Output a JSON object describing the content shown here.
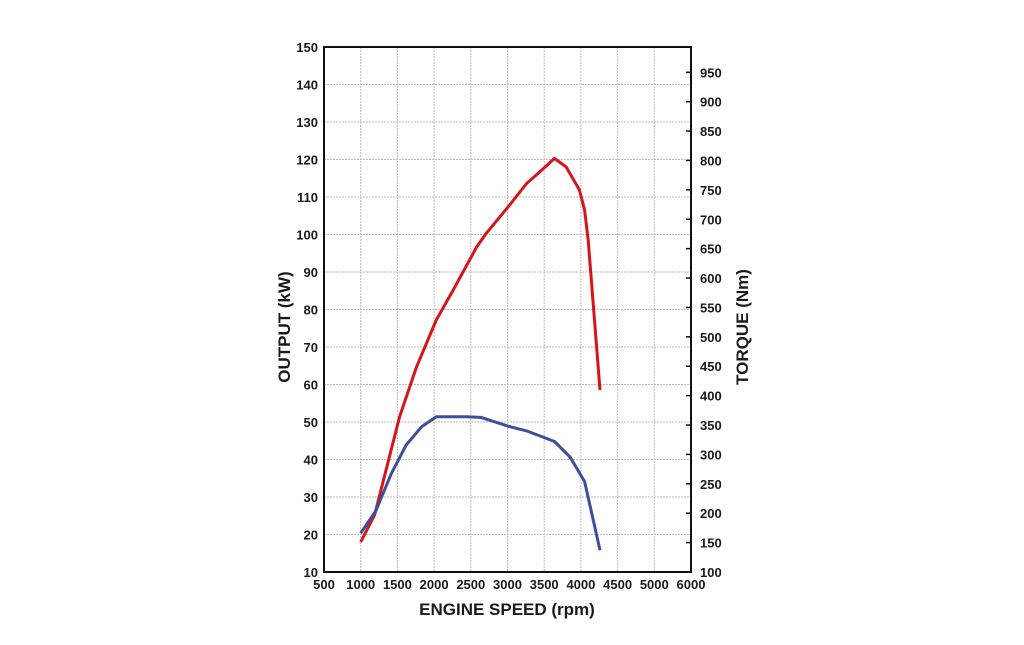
{
  "chart_data": {
    "type": "line",
    "title": "",
    "xlabel": "ENGINE SPEED  (rpm)",
    "ylabel": "OUTPUT  (kW)",
    "y2label": "TORQUE  (Nm)",
    "x_tick_labels": [
      "500",
      "1000",
      "1500",
      "2000",
      "2500",
      "3000",
      "3500",
      "4000",
      "4500",
      "5000",
      "6000"
    ],
    "xlim": [
      500,
      5500
    ],
    "ylim": [
      10,
      150
    ],
    "y_ticks": [
      10,
      20,
      30,
      40,
      50,
      60,
      70,
      80,
      90,
      100,
      110,
      120,
      130,
      140,
      150
    ],
    "y2lim": [
      100,
      993
    ],
    "y2_ticks": [
      100,
      150,
      200,
      250,
      300,
      350,
      400,
      450,
      500,
      550,
      600,
      650,
      700,
      750,
      800,
      850,
      900,
      950
    ],
    "grid": true,
    "series": [
      {
        "name": "Output (kW)",
        "axis": "left",
        "color": "#d7141a",
        "x": [
          1000,
          1190,
          1530,
          1760,
          2030,
          2260,
          2580,
          2710,
          3030,
          3260,
          3440,
          3640,
          3800,
          3980,
          4050,
          4100,
          4260
        ],
        "y": [
          18,
          25.2,
          51.4,
          64.7,
          77.2,
          85.2,
          96.7,
          100.3,
          107.9,
          113.6,
          116.7,
          120.3,
          118,
          111.9,
          106.5,
          98.5,
          58.5
        ]
      },
      {
        "name": "Torque (Nm)",
        "axis": "right",
        "color": "#3d4f9a",
        "x": [
          1000,
          1210,
          1420,
          1620,
          1830,
          2030,
          2440,
          2640,
          3010,
          3260,
          3640,
          3850,
          4050,
          4260
        ],
        "y": [
          166,
          205,
          268,
          316,
          347,
          364,
          364,
          363,
          348,
          340,
          322,
          296,
          254,
          137
        ]
      }
    ]
  }
}
